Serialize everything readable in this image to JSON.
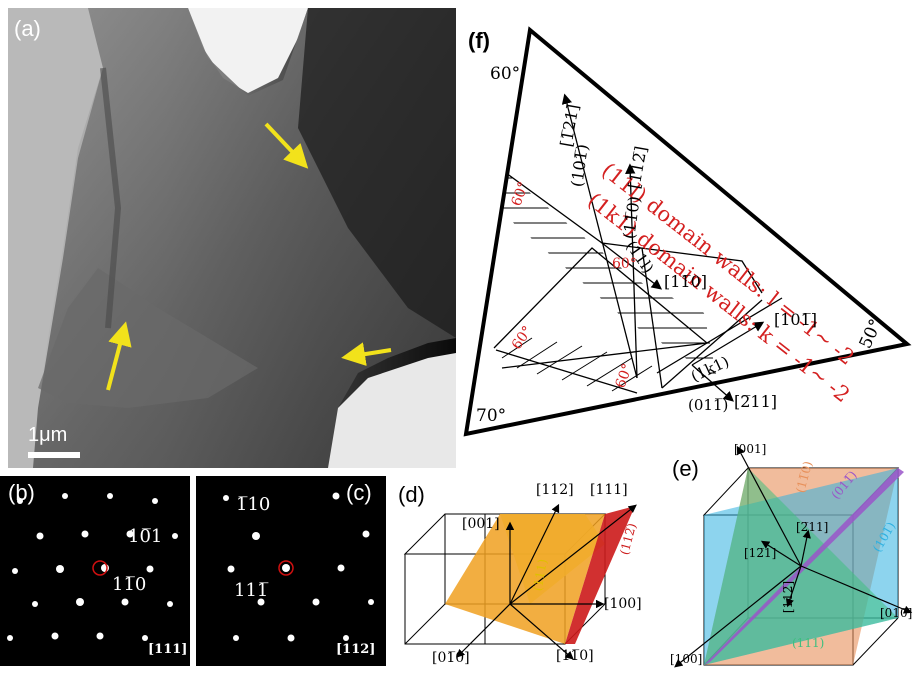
{
  "panel_a": {
    "label": "(a)",
    "scalebar": "1μm",
    "arrow_color": "#f2e21b"
  },
  "panel_b": {
    "label": "(b)",
    "spot1": "10̅1",
    "spot2": "11̅0",
    "zone": "[111]"
  },
  "panel_c": {
    "label": "(c)",
    "spot1": "1̅10",
    "spot2": "111̅",
    "zone": "[112]"
  },
  "panel_d": {
    "label": "(d)",
    "dir_001": "[001]",
    "dir_112": "[112]",
    "dir_111": "[111]",
    "dir_100": "[100]",
    "dir_010b": "[01̅0]",
    "dir_110b": "[11̅0]",
    "plane_112b": "(112̅)",
    "plane_111": "(111)",
    "colors": {
      "yellow": "#f6f06a",
      "orange": "#f0a020",
      "red": "#cc1a1a"
    }
  },
  "panel_e": {
    "label": "(e)",
    "dir_001": "[001]",
    "dir_010": "[010]",
    "dir_100": "[100]",
    "dir_121b": "[12̅1]",
    "dir_211b": "[2̅11]",
    "dir_112b": "[112̅]",
    "plane_110b": "(11̅0)",
    "plane_011b": "(011̅)",
    "plane_101b": "(101̅)",
    "plane_111": "(111)",
    "colors": {
      "orange": "#e8905a",
      "purple": "#9a55c9",
      "blue": "#2fb0e0",
      "green": "#3fbf7f"
    }
  },
  "panel_f": {
    "label": "(f)",
    "angle_top": "60°",
    "angle_right": "50°",
    "angle_bottom": "70°",
    "legend_line1": "(11l) domain walls: l = -1~ -2",
    "legend_line2": "(1k1) domain walls: k = -1~ -2",
    "dir_121b": "[1̅21]",
    "plane_101b": "(101̅)",
    "dir_112b": "[112̅]",
    "plane_110b": "(11̅0)",
    "plane_11l": "(11l)",
    "dir_110b": "[11̅0]",
    "dir_101b": "[101̅]",
    "plane_1k1": "(1k1)",
    "plane_011b": "(011̅)",
    "dir_211b": "[2̅11]",
    "red_60": "60°",
    "red_color": "#d42020"
  }
}
